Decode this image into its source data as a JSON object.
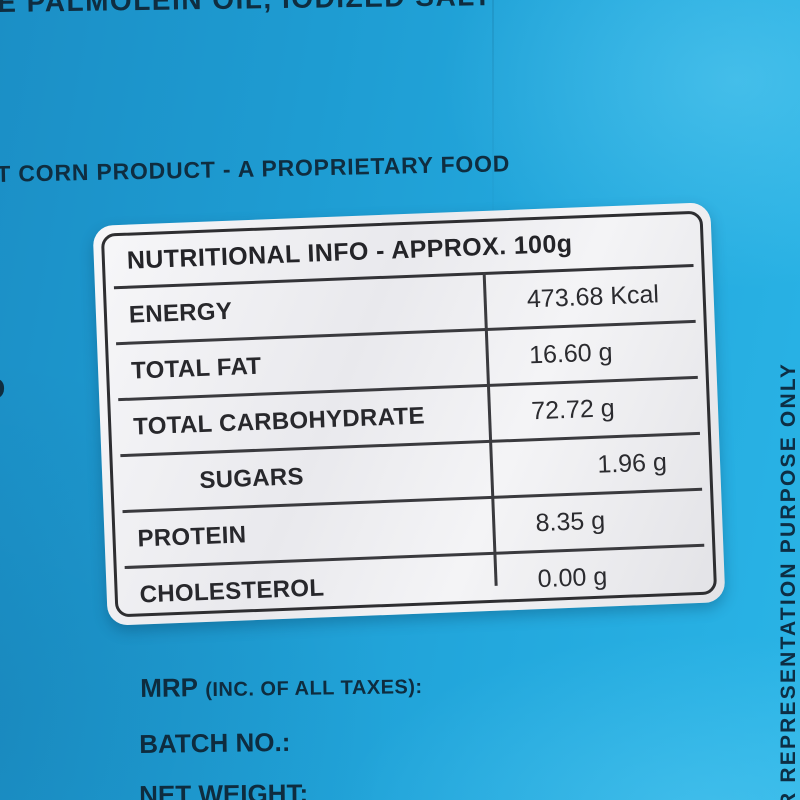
{
  "package": {
    "top_ingredients_fragment": "E PALMOLEIN OIL, IODIZED SALT",
    "product_line": "T CORN PRODUCT - A PROPRIETARY FOOD",
    "left_edge_fragment": "D",
    "side_note_vertical": "R REPRESENTATION PURPOSE ONLY"
  },
  "nutrition_table": {
    "title": "NUTRITIONAL INFO - APPROX. 100g",
    "rows": [
      {
        "label": "ENERGY",
        "value": "473.68 Kcal"
      },
      {
        "label": "TOTAL FAT",
        "value": "16.60 g"
      },
      {
        "label": "TOTAL CARBOHYDRATE",
        "value": "72.72 g"
      },
      {
        "label": "SUGARS",
        "value": "1.96 g"
      },
      {
        "label": "PROTEIN",
        "value": "8.35 g"
      },
      {
        "label": "CHOLESTEROL",
        "value": "0.00 g"
      }
    ]
  },
  "declarations": {
    "mrp_label": "MRP",
    "mrp_suffix": "(INC. OF ALL TAXES):",
    "batch_label": "BATCH NO.:",
    "net_weight_label": "NET WEIGHT:"
  },
  "colors": {
    "bag_blue_dark": "#1b8fc6",
    "bag_blue_light": "#2ab4e6",
    "package_text": "#0f2d40",
    "sticker_background": "#ededf0",
    "sticker_border": "#2e2e31",
    "table_text": "#28282c"
  }
}
